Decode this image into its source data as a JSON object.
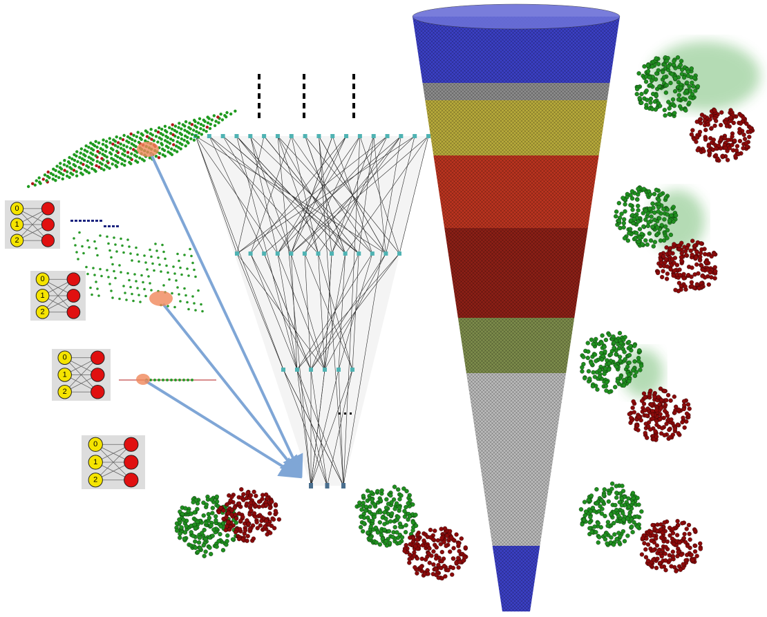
{
  "graphs": [
    {
      "left": [
        "0",
        "1",
        "2"
      ]
    },
    {
      "left": [
        "0",
        "1",
        "2"
      ]
    },
    {
      "left": [
        "0",
        "1",
        "2"
      ]
    },
    {
      "left": [
        "0",
        "1",
        "2"
      ]
    }
  ]
}
